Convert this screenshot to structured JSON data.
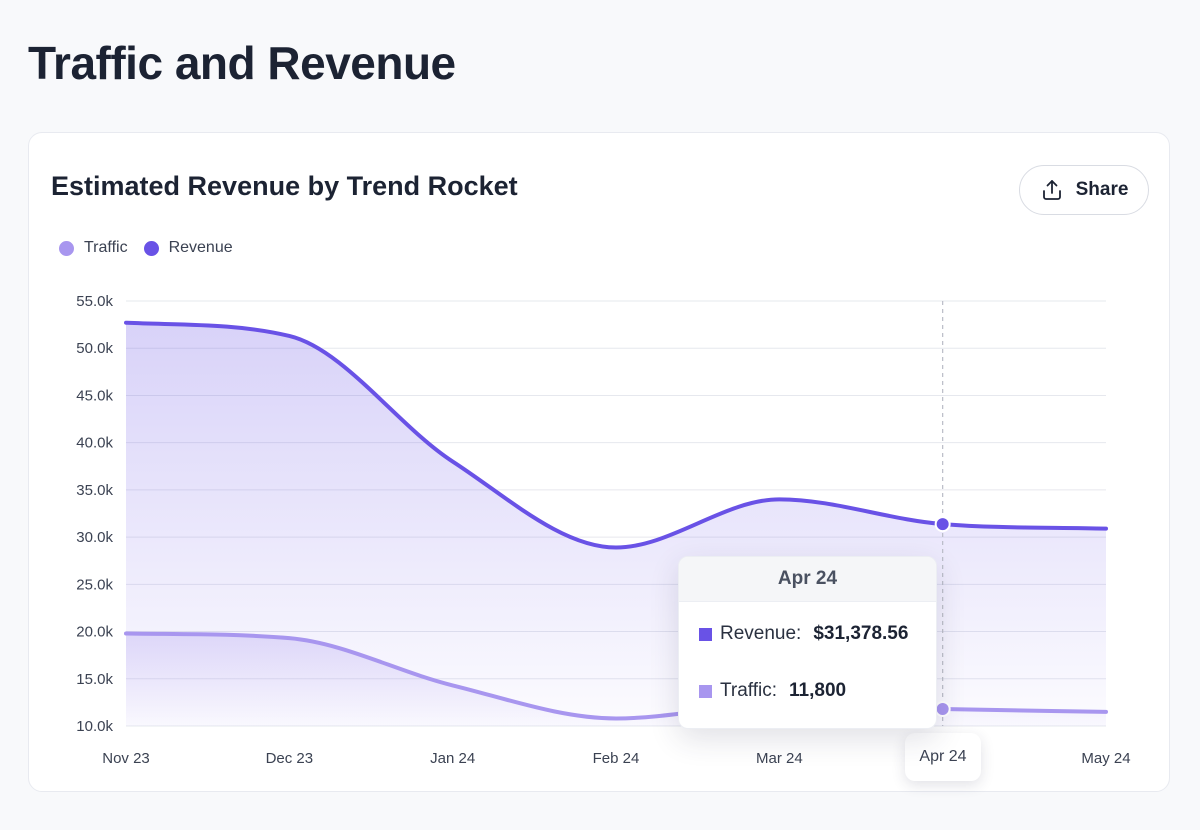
{
  "page": {
    "title": "Traffic and Revenue"
  },
  "card": {
    "title": "Estimated Revenue by Trend Rocket",
    "share_label": "Share"
  },
  "colors": {
    "revenue": "#6952e6",
    "traffic": "#a896ef",
    "grid": "#e6e8ee",
    "crosshair": "#b9bcc7"
  },
  "chart_data": {
    "type": "area",
    "title": "Estimated Revenue by Trend Rocket",
    "xlabel": "",
    "ylabel": "",
    "categories": [
      "Nov 23",
      "Dec 23",
      "Jan 24",
      "Feb 24",
      "Mar 24",
      "Apr 24",
      "May 24"
    ],
    "yticks": [
      "10.0k",
      "15.0k",
      "20.0k",
      "25.0k",
      "30.0k",
      "35.0k",
      "40.0k",
      "45.0k",
      "50.0k",
      "55.0k"
    ],
    "ylim": [
      10000,
      55000
    ],
    "grid": true,
    "legend_position": "top-left",
    "series": [
      {
        "name": "Traffic",
        "values": [
          19800,
          19300,
          14300,
          10800,
          12300,
          11800,
          11500
        ]
      },
      {
        "name": "Revenue",
        "values": [
          52700,
          51300,
          38000,
          28900,
          34000,
          31378.56,
          30900
        ]
      }
    ]
  },
  "tooltip": {
    "title": "Apr 24",
    "revenue_label": "Revenue:",
    "revenue_value": "$31,378.56",
    "traffic_label": "Traffic:",
    "traffic_value": "11,800"
  },
  "x_highlight_label": "Apr 24"
}
